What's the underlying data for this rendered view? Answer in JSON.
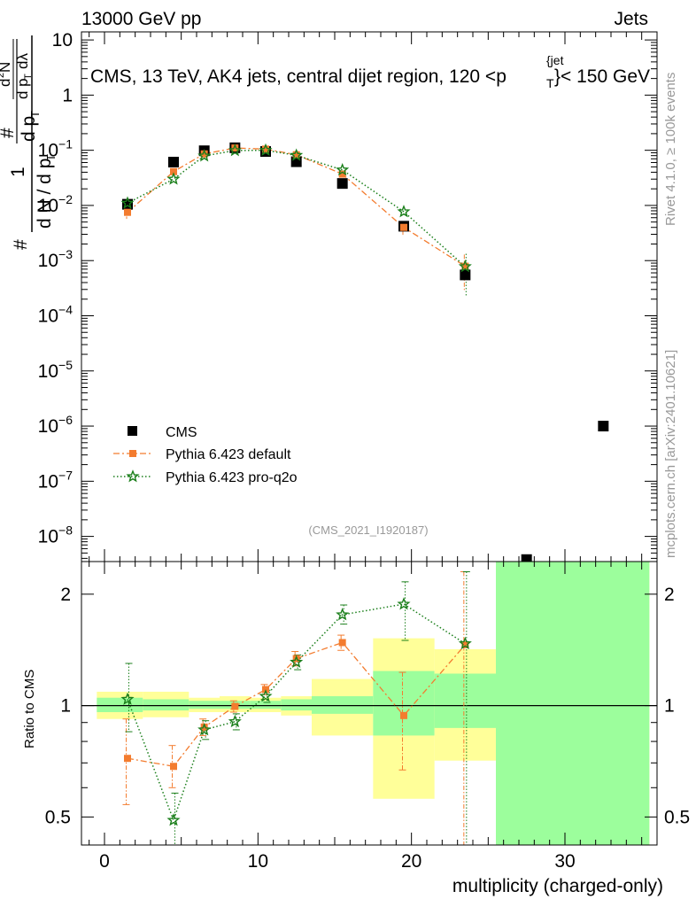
{
  "header": {
    "left": "13000 GeV pp",
    "right": "Jets"
  },
  "side_labels": {
    "rivet": "Rivet 4.1.0, ≥ 100k events",
    "mcplots": "mcplots.cern.ch [arXiv:2401.10621]"
  },
  "chart_data": {
    "type": "scatter",
    "title": "CMS, 13 TeV, AK4 jets, central dijet region, 120 <p",
    "title_sup": "{jet",
    "title_sub": "T",
    "title_tail": "}< 150 GeV",
    "watermark": "(CMS_2021_I1920187)",
    "xlabel": "multiplicity (charged-only)",
    "xlim": [
      -1.5,
      36
    ],
    "x_ticks": [
      "0",
      "10",
      "20",
      "30"
    ],
    "x_tick_values": [
      0,
      10,
      20,
      30
    ],
    "main": {
      "yscale": "log",
      "ylim": [
        3.5e-09,
        14
      ],
      "y_ticks": [
        {
          "value": 10,
          "base": "10",
          "exp": ""
        },
        {
          "value": 1,
          "base": "1",
          "exp": ""
        },
        {
          "value": 0.1,
          "base": "10",
          "exp": "−1"
        },
        {
          "value": 0.01,
          "base": "10",
          "exp": "−2"
        },
        {
          "value": 0.001,
          "base": "10",
          "exp": "−3"
        },
        {
          "value": 0.0001,
          "base": "10",
          "exp": "−4"
        },
        {
          "value": 1e-05,
          "base": "10",
          "exp": "−5"
        },
        {
          "value": 1e-06,
          "base": "10",
          "exp": "−6"
        },
        {
          "value": 1e-07,
          "base": "10",
          "exp": "−7"
        },
        {
          "value": 1e-08,
          "base": "10",
          "exp": "−8"
        }
      ],
      "ylabel": {
        "prefix": "#",
        "one": "1",
        "den": "d N / d p",
        "den_sub": "T",
        "num1": "#",
        "num2": "d",
        "num2_sup": "2",
        "num2_tail": "N",
        "num2_den": "d p",
        "num2_den_sub": "T",
        "num2_den_tail": "dλ",
        "num1_den": "d p",
        "num1_den_sub": "T"
      }
    },
    "ratio": {
      "ylabel": "Ratio to CMS",
      "yscale": "log",
      "ylim": [
        0.42,
        2.45
      ],
      "y_ticks": [
        {
          "value": 0.5,
          "label": "0.5"
        },
        {
          "value": 1,
          "label": "1"
        },
        {
          "value": 2,
          "label": "2"
        }
      ],
      "bands": [
        {
          "x": [
            -0.5,
            2.5
          ],
          "stat": [
            0.96,
            1.05
          ],
          "syst": [
            0.92,
            1.09
          ]
        },
        {
          "x": [
            2.5,
            5.5
          ],
          "stat": [
            0.97,
            1.04
          ],
          "syst": [
            0.93,
            1.09
          ]
        },
        {
          "x": [
            5.5,
            7.5
          ],
          "stat": [
            0.98,
            1.03
          ],
          "syst": [
            0.96,
            1.05
          ]
        },
        {
          "x": [
            7.5,
            9.5
          ],
          "stat": [
            0.98,
            1.03
          ],
          "syst": [
            0.96,
            1.06
          ]
        },
        {
          "x": [
            9.5,
            11.5
          ],
          "stat": [
            0.98,
            1.03
          ],
          "syst": [
            0.96,
            1.05
          ]
        },
        {
          "x": [
            11.5,
            13.5
          ],
          "stat": [
            0.97,
            1.04
          ],
          "syst": [
            0.94,
            1.06
          ]
        },
        {
          "x": [
            13.5,
            17.5
          ],
          "stat": [
            0.95,
            1.06
          ],
          "syst": [
            0.83,
            1.18
          ]
        },
        {
          "x": [
            17.5,
            21.5
          ],
          "stat": [
            0.83,
            1.24
          ],
          "syst": [
            0.56,
            1.52
          ]
        },
        {
          "x": [
            21.5,
            25.5
          ],
          "stat": [
            0.87,
            1.22
          ],
          "syst": [
            0.71,
            1.42
          ]
        },
        {
          "x": [
            25.5,
            35.5
          ],
          "stat": [
            0.3,
            3.0
          ],
          "syst": [
            0.3,
            3.0
          ]
        }
      ],
      "unity": 1
    },
    "series": [
      {
        "name": "CMS",
        "style": "square",
        "color": "#000000",
        "points": [
          {
            "x": 1.5,
            "y": 0.0105
          },
          {
            "x": 4.5,
            "y": 0.061
          },
          {
            "x": 6.5,
            "y": 0.098
          },
          {
            "x": 8.5,
            "y": 0.111
          },
          {
            "x": 10.5,
            "y": 0.095
          },
          {
            "x": 12.5,
            "y": 0.062
          },
          {
            "x": 15.5,
            "y": 0.025
          },
          {
            "x": 19.5,
            "y": 0.0042
          },
          {
            "x": 23.5,
            "y": 0.00055
          },
          {
            "x": 27.5,
            "y": 3.8e-09
          },
          {
            "x": 32.5,
            "y": 1e-06
          }
        ]
      },
      {
        "name": "Pythia 6.423 default",
        "style": "dashdot-square",
        "color": "#f37c2f",
        "points": [
          {
            "x": 1.5,
            "y": 0.0075,
            "err": 0.0018
          },
          {
            "x": 4.5,
            "y": 0.041
          },
          {
            "x": 6.5,
            "y": 0.086
          },
          {
            "x": 8.5,
            "y": 0.11
          },
          {
            "x": 10.5,
            "y": 0.105
          },
          {
            "x": 12.5,
            "y": 0.083
          },
          {
            "x": 15.5,
            "y": 0.037
          },
          {
            "x": 19.5,
            "y": 0.004,
            "err": 0.0012
          },
          {
            "x": 23.5,
            "y": 0.00079,
            "err": 0.0005
          }
        ],
        "ratio": [
          {
            "x": 1.5,
            "y": 0.72,
            "lo": 0.54,
            "hi": 0.92
          },
          {
            "x": 4.5,
            "y": 0.685,
            "lo": 0.6,
            "hi": 0.78
          },
          {
            "x": 6.5,
            "y": 0.875,
            "lo": 0.83,
            "hi": 0.92
          },
          {
            "x": 8.5,
            "y": 0.995,
            "lo": 0.96,
            "hi": 1.03
          },
          {
            "x": 10.5,
            "y": 1.105,
            "lo": 1.07,
            "hi": 1.14
          },
          {
            "x": 12.5,
            "y": 1.34,
            "lo": 1.28,
            "hi": 1.4
          },
          {
            "x": 15.5,
            "y": 1.48,
            "lo": 1.41,
            "hi": 1.55
          },
          {
            "x": 19.5,
            "y": 0.94,
            "lo": 0.67,
            "hi": 1.23
          },
          {
            "x": 23.5,
            "y": 1.46,
            "lo": 0.42,
            "hi": 2.3
          }
        ]
      },
      {
        "name": "Pythia 6.423 pro-q2o",
        "style": "dotted-star",
        "color": "#1b7f1b",
        "points": [
          {
            "x": 1.5,
            "y": 0.011
          },
          {
            "x": 4.5,
            "y": 0.03
          },
          {
            "x": 6.5,
            "y": 0.079
          },
          {
            "x": 8.5,
            "y": 0.099
          },
          {
            "x": 10.5,
            "y": 0.1
          },
          {
            "x": 12.5,
            "y": 0.081
          },
          {
            "x": 15.5,
            "y": 0.044
          },
          {
            "x": 19.5,
            "y": 0.0077
          },
          {
            "x": 23.5,
            "y": 0.00078,
            "err": 0.00055
          }
        ],
        "ratio": [
          {
            "x": 1.5,
            "y": 1.04,
            "lo": 0.85,
            "hi": 1.3
          },
          {
            "x": 4.5,
            "y": 0.49,
            "lo": 0.4,
            "hi": 0.58
          },
          {
            "x": 6.5,
            "y": 0.86,
            "lo": 0.81,
            "hi": 0.91
          },
          {
            "x": 8.5,
            "y": 0.905,
            "lo": 0.86,
            "hi": 0.95
          },
          {
            "x": 10.5,
            "y": 1.06,
            "lo": 1.02,
            "hi": 1.1
          },
          {
            "x": 12.5,
            "y": 1.31,
            "lo": 1.25,
            "hi": 1.37
          },
          {
            "x": 15.5,
            "y": 1.76,
            "lo": 1.66,
            "hi": 1.87
          },
          {
            "x": 19.5,
            "y": 1.88,
            "lo": 1.5,
            "hi": 2.16
          },
          {
            "x": 23.5,
            "y": 1.47,
            "lo": 0.42,
            "hi": 2.3
          }
        ]
      }
    ],
    "legend": {
      "position": "bottom-left",
      "entries": [
        "CMS",
        "Pythia 6.423 default",
        "Pythia 6.423 pro-q2o"
      ]
    }
  },
  "colors": {
    "band_stat": "#9cfe9c",
    "band_syst": "#ffff99",
    "default": "#f37c2f",
    "pro": "#1b7f1b",
    "data": "#000000"
  }
}
